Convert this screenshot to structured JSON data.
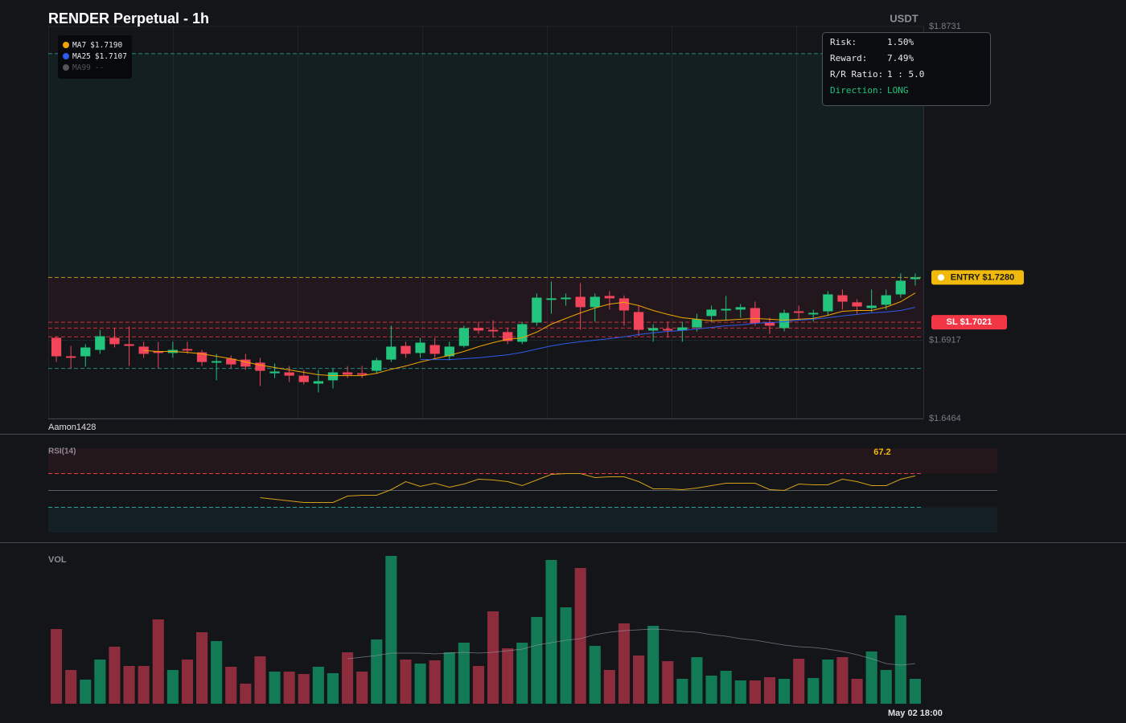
{
  "chart_data": [
    {
      "type": "candlestick",
      "title": "RENDER Perpetual - 1h",
      "unit": "USDT",
      "watermark": "Aamon1428",
      "up_color": "#22c47e",
      "down_color": "#f2455c",
      "open": [
        1.6931,
        1.6824,
        1.6824,
        1.6861,
        1.6931,
        1.6894,
        1.688,
        1.6852,
        1.6843,
        1.6866,
        1.6847,
        1.6787,
        1.681,
        1.6805,
        1.6787,
        1.6726,
        1.6731,
        1.6712,
        1.6666,
        1.6685,
        1.6731,
        1.6726,
        1.674,
        1.6805,
        1.6884,
        1.6843,
        1.6889,
        1.6824,
        1.6884,
        1.6987,
        1.6977,
        1.6964,
        1.6908,
        1.7019,
        1.715,
        1.7154,
        1.7168,
        1.7108,
        1.7173,
        1.7159,
        1.708,
        1.6973,
        1.6982,
        1.6973,
        1.6991,
        1.7057,
        1.7089,
        1.7094,
        1.7103,
        1.7019,
        1.6987,
        1.7084,
        1.7066,
        1.7084,
        1.7177,
        1.7136,
        1.7103,
        1.7122,
        1.7182,
        1.727
      ],
      "high": [
        1.694,
        1.6884,
        1.6894,
        1.6977,
        1.6987,
        1.6996,
        1.6908,
        1.6908,
        1.6908,
        1.6908,
        1.6861,
        1.6838,
        1.6829,
        1.6838,
        1.6815,
        1.6782,
        1.6768,
        1.6745,
        1.6745,
        1.6754,
        1.6768,
        1.6768,
        1.6815,
        1.7001,
        1.6908,
        1.6931,
        1.6931,
        1.6908,
        1.7001,
        1.7024,
        1.7033,
        1.6987,
        1.7024,
        1.7187,
        1.7256,
        1.7187,
        1.7247,
        1.7187,
        1.7201,
        1.7177,
        1.7117,
        1.701,
        1.7024,
        1.7024,
        1.707,
        1.7117,
        1.7173,
        1.7126,
        1.714,
        1.7047,
        1.7094,
        1.7117,
        1.7094,
        1.7201,
        1.721,
        1.7154,
        1.721,
        1.721,
        1.7303,
        1.7303
      ],
      "low": [
        1.6791,
        1.6754,
        1.6764,
        1.6838,
        1.6875,
        1.6768,
        1.6815,
        1.6754,
        1.6815,
        1.6838,
        1.6768,
        1.6685,
        1.6754,
        1.6745,
        1.6652,
        1.6698,
        1.6675,
        1.6661,
        1.6615,
        1.6638,
        1.6698,
        1.6698,
        1.6722,
        1.6791,
        1.6815,
        1.6815,
        1.6815,
        1.6801,
        1.6875,
        1.6954,
        1.6931,
        1.6894,
        1.6894,
        1.7001,
        1.707,
        1.7117,
        1.6977,
        1.7024,
        1.7094,
        1.7001,
        1.694,
        1.6908,
        1.6931,
        1.6908,
        1.6968,
        1.7024,
        1.7033,
        1.7047,
        1.7001,
        1.6954,
        1.6968,
        1.7033,
        1.7024,
        1.7061,
        1.7094,
        1.707,
        1.708,
        1.7094,
        1.7163,
        1.7233
      ],
      "close": [
        1.6824,
        1.6815,
        1.6875,
        1.694,
        1.6894,
        1.6884,
        1.6838,
        1.6843,
        1.6861,
        1.6857,
        1.6791,
        1.6796,
        1.6777,
        1.6764,
        1.674,
        1.6736,
        1.6712,
        1.6675,
        1.668,
        1.6731,
        1.6717,
        1.6717,
        1.6801,
        1.688,
        1.6838,
        1.6903,
        1.6838,
        1.688,
        1.6987,
        1.6973,
        1.6968,
        1.6912,
        1.701,
        1.7163,
        1.7159,
        1.7163,
        1.7108,
        1.7168,
        1.7159,
        1.7089,
        1.6977,
        1.6987,
        1.6973,
        1.6991,
        1.7038,
        1.7094,
        1.7098,
        1.7108,
        1.7015,
        1.7001,
        1.7075,
        1.7075,
        1.7075,
        1.7182,
        1.714,
        1.7112,
        1.7117,
        1.7177,
        1.7261,
        1.728
      ],
      "series": [
        {
          "name": "MA7",
          "color": "#f0a500",
          "last_label": "$1.7190",
          "values": [
            null,
            null,
            null,
            null,
            null,
            null,
            1.6857,
            1.6852,
            1.6852,
            1.6847,
            1.6838,
            1.6824,
            1.681,
            1.6791,
            1.6773,
            1.6759,
            1.6745,
            1.6731,
            1.6717,
            1.6712,
            1.6712,
            1.6712,
            1.6726,
            1.6749,
            1.6768,
            1.6791,
            1.681,
            1.6829,
            1.6852,
            1.688,
            1.6903,
            1.6922,
            1.6931,
            1.6964,
            1.701,
            1.7043,
            1.7075,
            1.7103,
            1.7126,
            1.7136,
            1.7117,
            1.7089,
            1.7066,
            1.7047,
            1.7038,
            1.7029,
            1.7033,
            1.7038,
            1.7043,
            1.7038,
            1.7033,
            1.7038,
            1.7043,
            1.7061,
            1.7084,
            1.7089,
            1.7089,
            1.7108,
            1.714,
            1.719
          ]
        },
        {
          "name": "MA25",
          "color": "#2f5bea",
          "last_label": "$1.7107",
          "values": [
            null,
            null,
            null,
            null,
            null,
            null,
            null,
            null,
            null,
            null,
            null,
            null,
            null,
            null,
            null,
            null,
            null,
            null,
            null,
            null,
            null,
            null,
            null,
            null,
            null,
            1.6805,
            1.6805,
            1.6805,
            1.681,
            1.6815,
            1.6824,
            1.6833,
            1.6847,
            1.6866,
            1.6884,
            1.6898,
            1.6908,
            1.6917,
            1.6926,
            1.6936,
            1.695,
            1.6959,
            1.6968,
            1.6973,
            1.6982,
            1.6991,
            1.7001,
            1.7005,
            1.7015,
            1.7019,
            1.7024,
            1.7033,
            1.7038,
            1.7047,
            1.7057,
            1.7066,
            1.7075,
            1.708,
            1.7089,
            1.7107
          ]
        },
        {
          "name": "MA99",
          "color": "#555555",
          "last_label": "--",
          "values": [
            null,
            null,
            null,
            null,
            null,
            null,
            null,
            null,
            null,
            null,
            null,
            null,
            null,
            null,
            null,
            null,
            null,
            null,
            null,
            null,
            null,
            null,
            null,
            null,
            null,
            null,
            null,
            null,
            null,
            null,
            null,
            null,
            null,
            null,
            null,
            null,
            null,
            null,
            null,
            null,
            null,
            null,
            null,
            null,
            null,
            null,
            null,
            null,
            null,
            null,
            null,
            null,
            null,
            null,
            null,
            null,
            null,
            null,
            null,
            null
          ]
        }
      ],
      "ylim": [
        1.6464,
        1.8731
      ],
      "yticks": [
        {
          "value": 1.8731,
          "label": "$1.8731"
        },
        {
          "value": 1.6917,
          "label": "$1.6917"
        },
        {
          "value": 1.6464,
          "label": "$1.6464"
        }
      ],
      "zones": [
        {
          "from": 1.728,
          "to": 1.8574,
          "color": "#26a69a"
        },
        {
          "from": 1.6936,
          "to": 1.728,
          "color": "#f23645"
        }
      ],
      "levels": [
        {
          "value": 1.8574,
          "color": "#26a69a"
        },
        {
          "value": 1.728,
          "color": "#f0b90b",
          "label": "ENTRY $1.7280"
        },
        {
          "value": 1.7021,
          "color": "#f23645",
          "label": "SL $1.7021"
        },
        {
          "value": 1.6987,
          "color": "#f23645"
        },
        {
          "value": 1.6936,
          "color": "#f23645"
        },
        {
          "value": 1.6754,
          "color": "#26a69a"
        }
      ],
      "info": [
        {
          "label": "Risk:",
          "value": "1.50%"
        },
        {
          "label": "Reward:",
          "value": "7.49%"
        },
        {
          "label": "R/R Ratio:",
          "value": "1 : 5.0"
        },
        {
          "label": "Direction:",
          "value": "LONG"
        }
      ]
    },
    {
      "type": "line",
      "title": "RSI(14)",
      "color": "#d4a017",
      "ylim": [
        0,
        100
      ],
      "values": [
        null,
        null,
        null,
        null,
        null,
        null,
        null,
        null,
        null,
        null,
        null,
        null,
        null,
        null,
        41.4,
        39.5,
        37.6,
        35.7,
        35.7,
        35.7,
        43.3,
        44.3,
        44.3,
        51,
        60.5,
        54.8,
        58.6,
        53.8,
        57.6,
        63.3,
        62.4,
        60.5,
        55.7,
        62.4,
        69,
        70,
        70,
        65.2,
        66.2,
        66.2,
        60.5,
        51.9,
        51.9,
        51,
        52.9,
        55.7,
        58.6,
        58.6,
        58.6,
        51,
        50,
        57.6,
        56.7,
        56.7,
        63.3,
        60.5,
        55.7,
        55.7,
        63.3,
        67.2
      ],
      "levels": [
        {
          "value": 70,
          "color": "#f23645",
          "dashed": true
        },
        {
          "value": 50,
          "color": "#555a63",
          "dashed": false
        },
        {
          "value": 30,
          "color": "#26a69a",
          "dashed": true
        }
      ],
      "zones": [
        {
          "from": 70,
          "to": 100,
          "color": "#f23645"
        },
        {
          "from": 0,
          "to": 30,
          "color": "#26a69a"
        }
      ]
    },
    {
      "type": "bar",
      "title": "VOL",
      "up_color": "#127a55",
      "down_color": "#8c2c3c",
      "ylim": [
        0,
        200
      ],
      "categories": [
        null,
        null,
        null,
        null,
        null,
        null,
        null,
        null,
        null,
        null,
        null,
        null,
        null,
        null,
        null,
        null,
        null,
        null,
        null,
        null,
        null,
        null,
        null,
        null,
        null,
        null,
        null,
        null,
        null,
        null,
        null,
        null,
        null,
        null,
        null,
        null,
        null,
        null,
        null,
        null,
        null,
        null,
        null,
        null,
        null,
        null,
        null,
        null,
        null,
        null,
        null,
        null,
        null,
        null,
        null,
        null,
        null,
        null,
        null,
        "May 02 18:00"
      ],
      "values": [
        93,
        42,
        30,
        55,
        71,
        47,
        47,
        105,
        42,
        55,
        89,
        78,
        46,
        25,
        59,
        40,
        40,
        37,
        46,
        38,
        64,
        40,
        80,
        184,
        55,
        50,
        54,
        64,
        76,
        47,
        115,
        69,
        76,
        108,
        179,
        120,
        169,
        72,
        42,
        100,
        60,
        97,
        53,
        31,
        58,
        35,
        41,
        29,
        29,
        33,
        31,
        56,
        32,
        55,
        58,
        31,
        65,
        42,
        110,
        31
      ],
      "series": [
        {
          "color": "#9aa0a6",
          "values": [
            null,
            null,
            null,
            null,
            null,
            null,
            null,
            null,
            null,
            null,
            null,
            null,
            null,
            null,
            null,
            null,
            null,
            null,
            null,
            null,
            56,
            58,
            60,
            63,
            63,
            63,
            62,
            63,
            64,
            63,
            64,
            66,
            68,
            73,
            76,
            79,
            81,
            86,
            89,
            91,
            92,
            93,
            92,
            90,
            89,
            86,
            84,
            81,
            79,
            76,
            73,
            71,
            70,
            68,
            65,
            61,
            56,
            50,
            48,
            50
          ]
        }
      ]
    }
  ]
}
